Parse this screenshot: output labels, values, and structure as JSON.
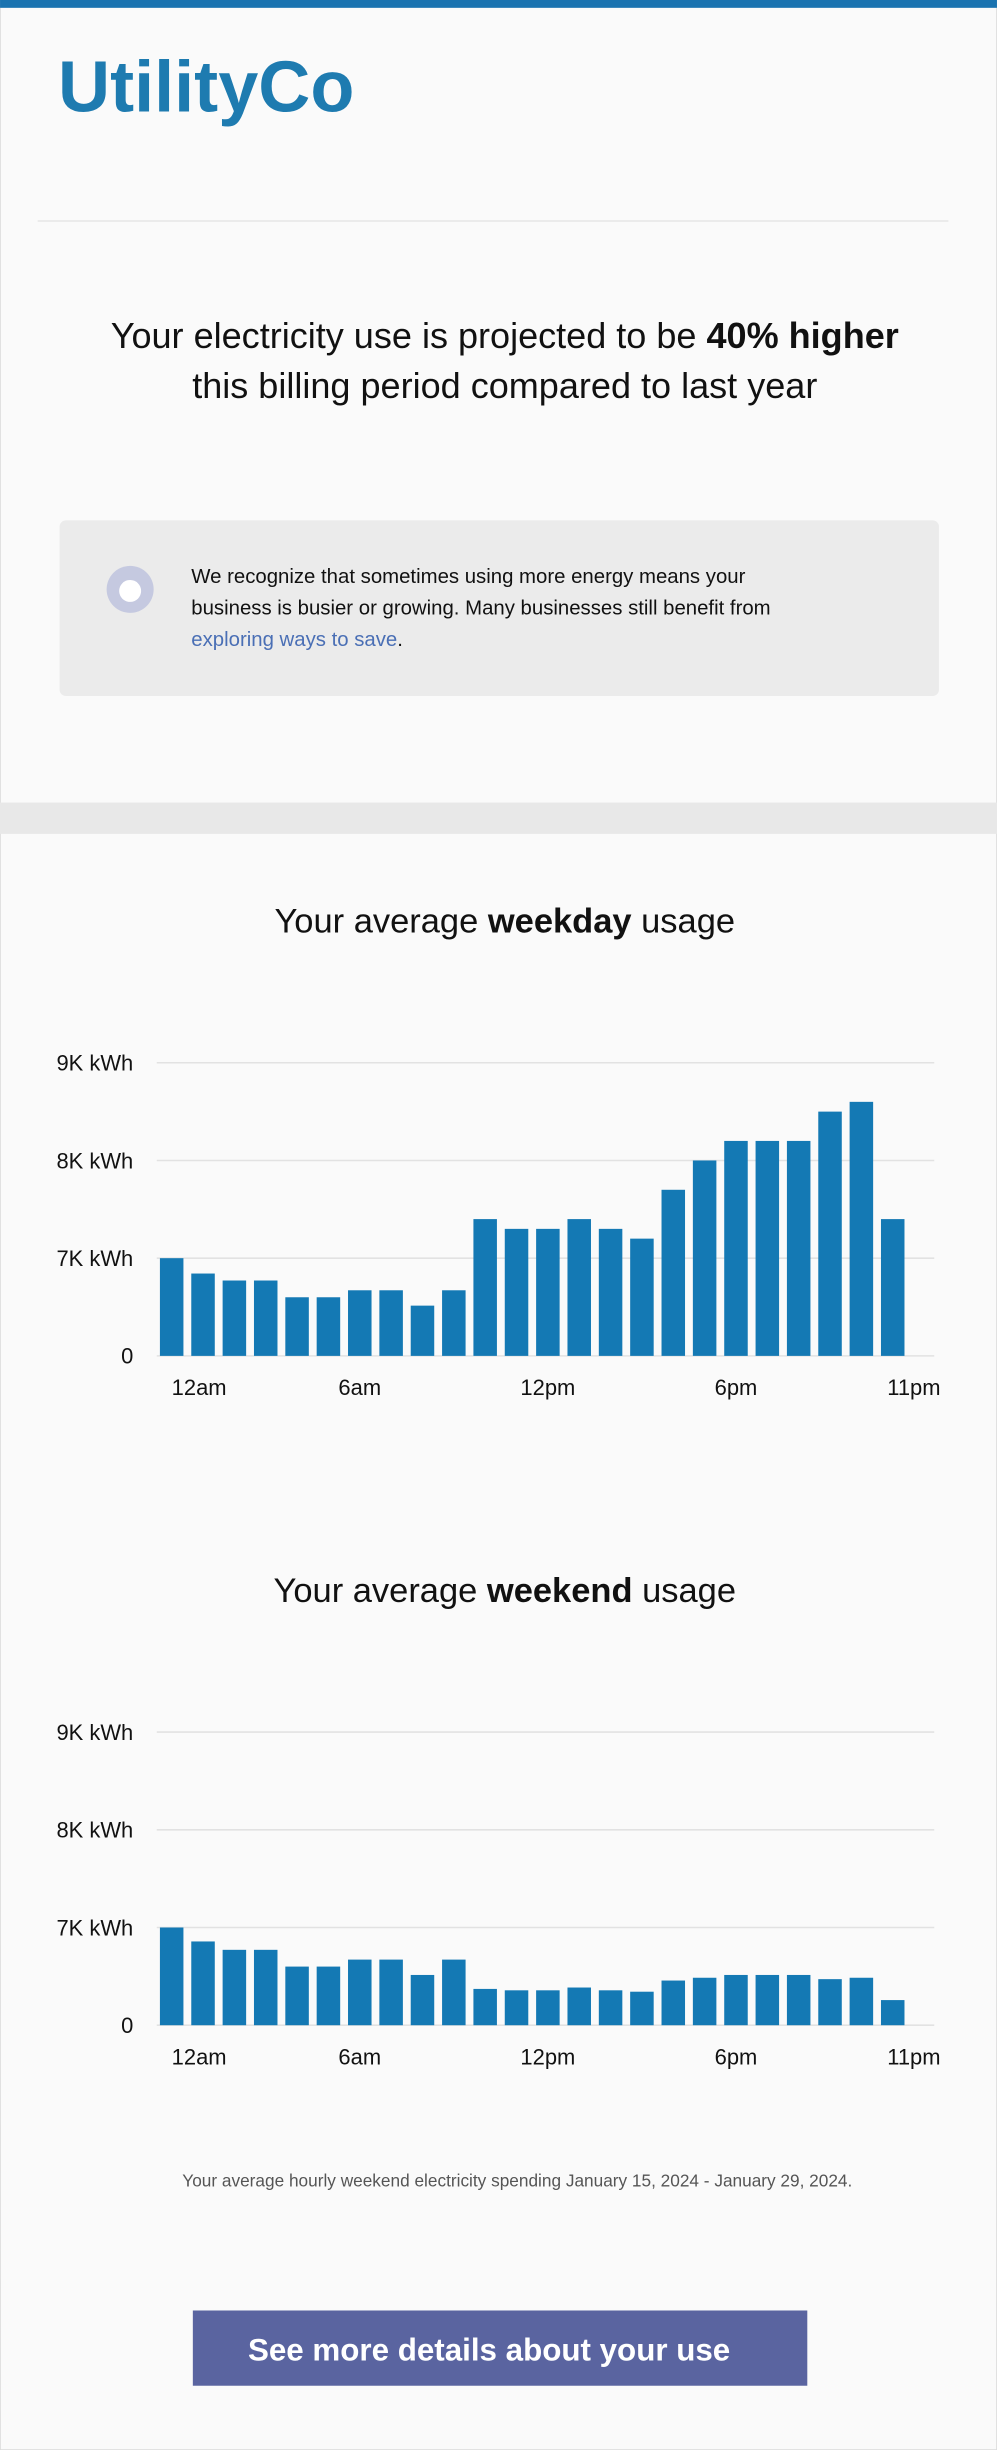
{
  "logo": "UtilityCo",
  "headline": {
    "start": "Your electricity use is projected to be ",
    "bold": "40% higher",
    "end": "this billing period compared to last year"
  },
  "notice": {
    "line1": "We recognize that sometimes using more energy means your",
    "line2": "business is busier or growing. Many businesses still benefit from",
    "link": "exploring ways to save",
    "end": "."
  },
  "chart_data": [
    {
      "type": "bar",
      "title_start": "Your average ",
      "title_bold": "weekday",
      "title_end": " usage",
      "categories": [
        "12am",
        null,
        null,
        null,
        null,
        null,
        "6am",
        null,
        null,
        null,
        null,
        null,
        "12pm",
        null,
        null,
        null,
        null,
        null,
        "6pm",
        null,
        null,
        null,
        null,
        "11pm"
      ],
      "values": [
        7000,
        5900,
        5400,
        5400,
        4200,
        4200,
        4700,
        4700,
        3600,
        4700,
        7400,
        7300,
        7300,
        7400,
        7300,
        7200,
        7700,
        8000,
        8200,
        8200,
        8200,
        8500,
        8600,
        7400
      ],
      "color": "#1479b4",
      "ylim": [
        0,
        9000
      ],
      "yticks": [
        0,
        {
          "value": 7000,
          "label": "7K kWh"
        },
        {
          "value": 8000,
          "label": "8K kWh"
        },
        {
          "value": 9000,
          "label": "9K kWh"
        }
      ],
      "grid": true
    },
    {
      "type": "bar",
      "title_start": "Your average ",
      "title_bold": "weekend",
      "title_end": " usage",
      "categories": [
        "12am",
        null,
        null,
        null,
        null,
        null,
        "6am",
        null,
        null,
        null,
        null,
        null,
        "12pm",
        null,
        null,
        null,
        null,
        null,
        "6pm",
        null,
        null,
        null,
        null,
        "11pm"
      ],
      "values": [
        7000,
        6000,
        5400,
        5400,
        4200,
        4200,
        4700,
        4700,
        3600,
        4700,
        2600,
        2500,
        2500,
        2700,
        2500,
        2400,
        3200,
        3400,
        3600,
        3600,
        3600,
        3300,
        3400,
        1800
      ],
      "color": "#1479b4",
      "ylim": [
        0,
        9000
      ],
      "yticks": [
        0,
        {
          "value": 7000,
          "label": "7K kWh"
        },
        {
          "value": 8000,
          "label": "8K kWh"
        },
        {
          "value": 9000,
          "label": "9K kWh"
        }
      ],
      "grid": true
    }
  ],
  "caption": "Your average hourly weekend electricity spending January 15, 2024 - January 29, 2024.",
  "button": "See more details about your use"
}
